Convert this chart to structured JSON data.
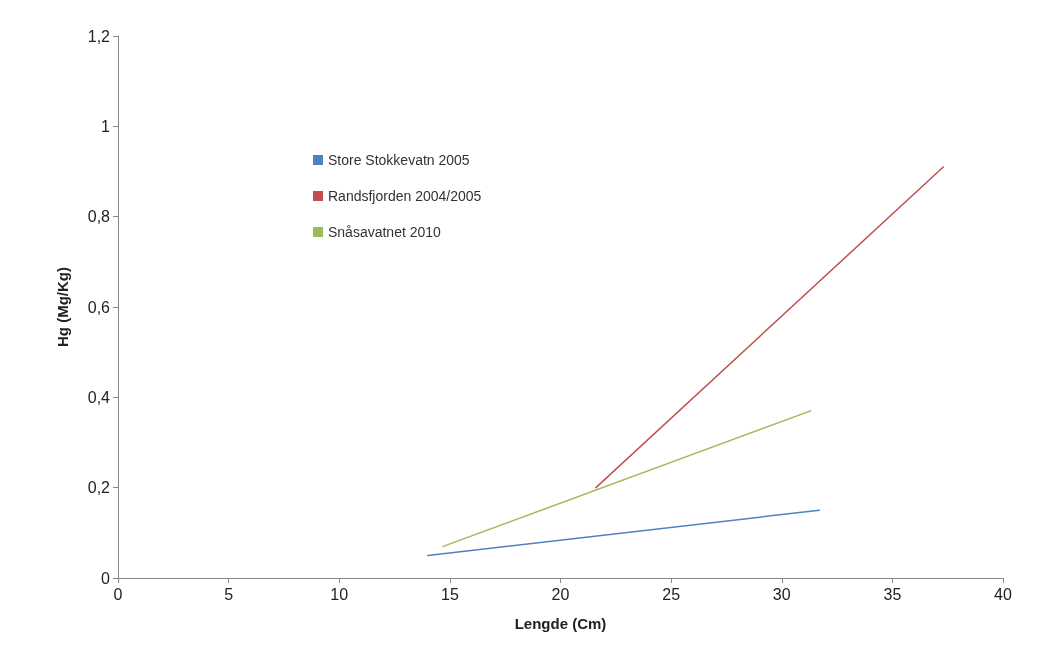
{
  "chart_data": {
    "type": "line",
    "xlabel": "Lengde (Cm)",
    "ylabel": "Hg (Mg/Kg)",
    "xlim": [
      0,
      40
    ],
    "xticks": [
      0,
      5,
      10,
      15,
      20,
      25,
      30,
      35,
      40
    ],
    "ylim": [
      0,
      1.2
    ],
    "yticks": [
      0,
      {
        "value": 0.2,
        "label": "0,2"
      },
      {
        "value": 0.4,
        "label": "0,4"
      },
      {
        "value": 0.6,
        "label": "0,6"
      },
      {
        "value": 0.8,
        "label": "0,8"
      },
      1,
      {
        "value": 1.2,
        "label": "1,2"
      }
    ],
    "grid": false,
    "legend": "top left",
    "marker": "none",
    "series": [
      {
        "name": "Store Stokkevatn 2005",
        "color": "#4f81bd",
        "x": [
          14.0,
          31.7
        ],
        "values": [
          0.05,
          0.15
        ]
      },
      {
        "name": "Randsfjorden 2004/2005",
        "color": "#c0504d",
        "x": [
          21.6,
          37.3
        ],
        "values": [
          0.2,
          0.91
        ]
      },
      {
        "name": "Snåsavatnet 2010",
        "color": "#9bbb59",
        "x": [
          14.7,
          31.3
        ],
        "values": [
          0.07,
          0.37
        ]
      }
    ]
  }
}
